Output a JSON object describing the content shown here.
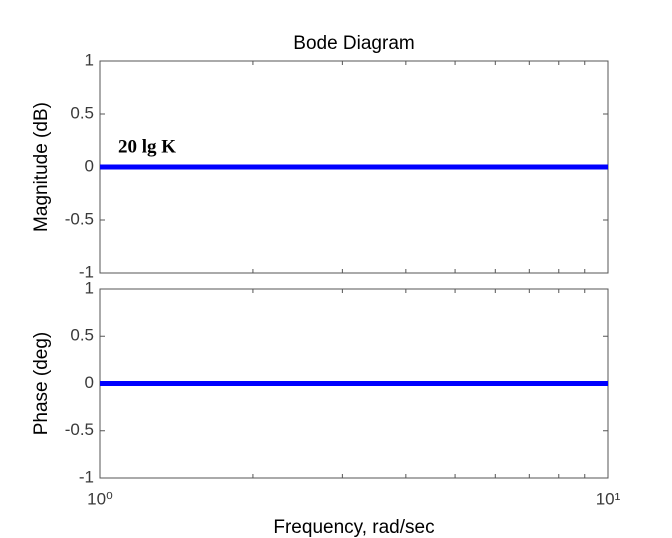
{
  "chart_data": [
    {
      "type": "line",
      "title": "Bode Diagram",
      "ylabel": "Magnitude (dB)",
      "annotation": "20 lg K",
      "x": [
        1,
        10
      ],
      "values": [
        0,
        0
      ],
      "color": "#0000ff",
      "xlim": [
        1,
        10
      ],
      "xscale": "log",
      "xminorticks": [
        2,
        3,
        4,
        5,
        6,
        7,
        8,
        9
      ],
      "ylim": [
        -1,
        1
      ],
      "yticks": [
        1,
        0.5,
        0,
        -0.5,
        -1
      ]
    },
    {
      "type": "line",
      "ylabel": "Phase (deg)",
      "xlabel": "Frequency, rad/sec",
      "x": [
        1,
        10
      ],
      "values": [
        0,
        0
      ],
      "color": "#0000ff",
      "xlim": [
        1,
        10
      ],
      "xscale": "log",
      "xminorticks": [
        2,
        3,
        4,
        5,
        6,
        7,
        8,
        9
      ],
      "xticks": [
        {
          "value": 1,
          "label": "10⁰"
        },
        {
          "value": 10,
          "label": "10¹"
        }
      ],
      "ylim": [
        -1,
        1
      ],
      "yticks": [
        1,
        0.5,
        0,
        -0.5,
        -1
      ]
    }
  ]
}
